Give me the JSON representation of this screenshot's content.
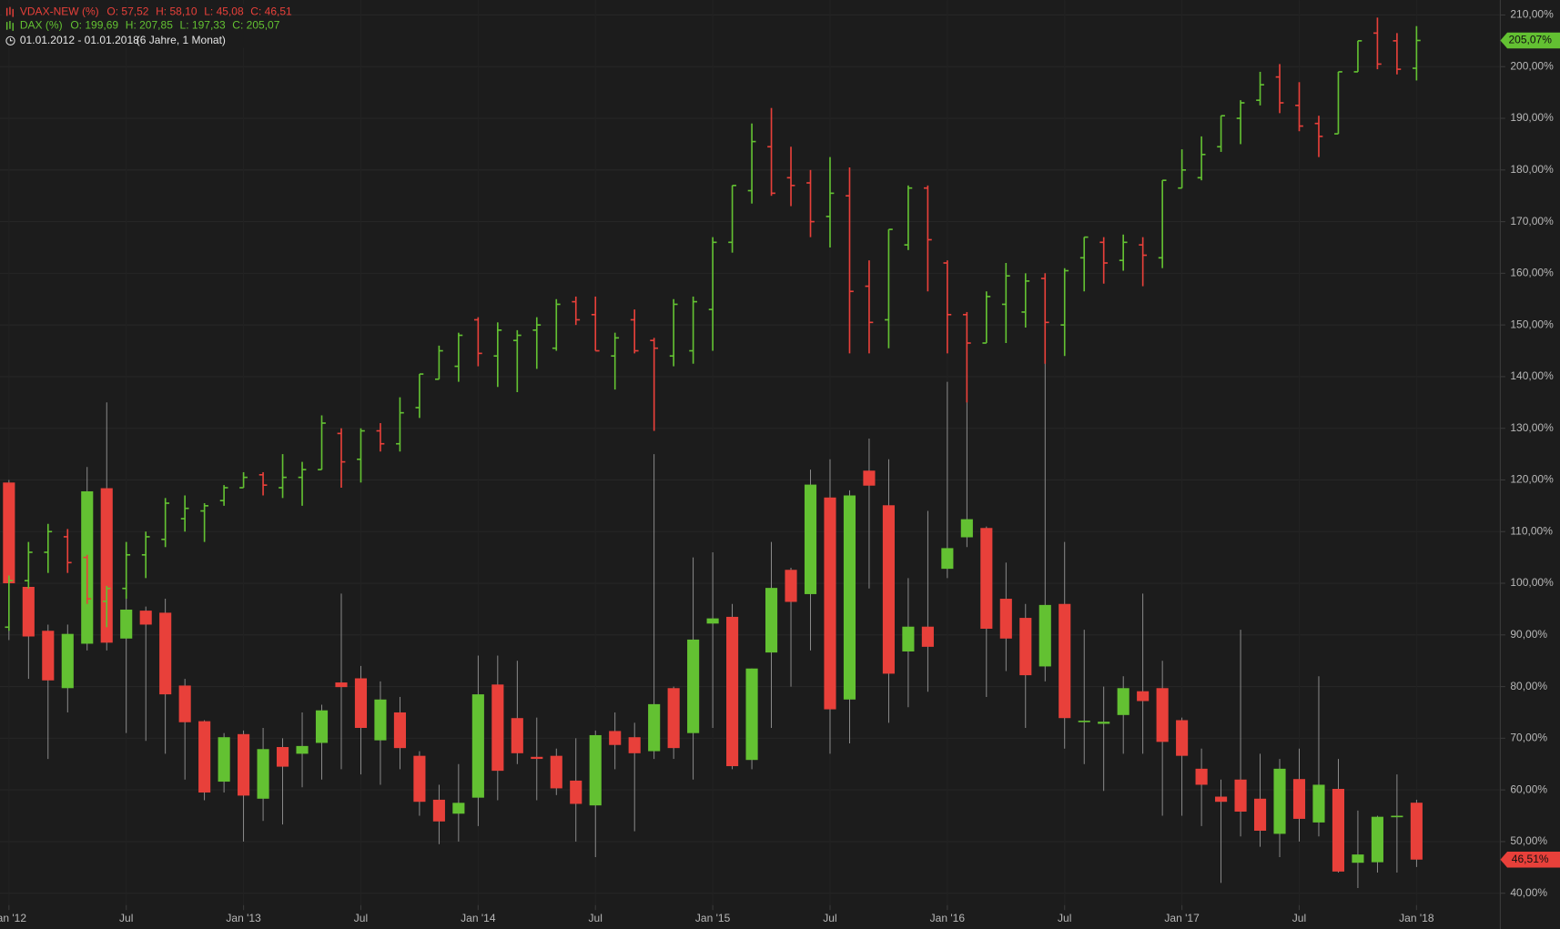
{
  "chart_data": {
    "type": "ohlc",
    "period": "01.01.2012 - 01.01.2018",
    "period_note": "(6 Jahre, 1 Monat)",
    "up_color": "#63c132",
    "down_color": "#e8403a",
    "grid": true,
    "categories": [
      "Jan '12",
      null,
      null,
      null,
      null,
      null,
      "Jul",
      null,
      null,
      null,
      null,
      null,
      "Jan '13",
      null,
      null,
      null,
      null,
      null,
      "Jul",
      null,
      null,
      null,
      null,
      null,
      "Jan '14",
      null,
      null,
      null,
      null,
      null,
      "Jul",
      null,
      null,
      null,
      null,
      null,
      "Jan '15",
      null,
      null,
      null,
      null,
      null,
      "Jul",
      null,
      null,
      null,
      null,
      null,
      "Jan '16",
      null,
      null,
      null,
      null,
      null,
      "Jul",
      null,
      null,
      null,
      null,
      null,
      "Jan '17",
      null,
      null,
      null,
      null,
      null,
      "Jul",
      null,
      null,
      null,
      null,
      null,
      "Jan '18"
    ],
    "ylim": [
      37.7,
      212.9
    ],
    "yticks": [
      {
        "value": 40,
        "label": "40,00%"
      },
      {
        "value": 50,
        "label": "50,00%"
      },
      {
        "value": 60,
        "label": "60,00%"
      },
      {
        "value": 70,
        "label": "70,00%"
      },
      {
        "value": 80,
        "label": "80,00%"
      },
      {
        "value": 90,
        "label": "90,00%"
      },
      {
        "value": 100,
        "label": "100,00%"
      },
      {
        "value": 110,
        "label": "110,00%"
      },
      {
        "value": 120,
        "label": "120,00%"
      },
      {
        "value": 130,
        "label": "130,00%"
      },
      {
        "value": 140,
        "label": "140,00%"
      },
      {
        "value": 150,
        "label": "150,00%"
      },
      {
        "value": 160,
        "label": "160,00%"
      },
      {
        "value": 170,
        "label": "170,00%"
      },
      {
        "value": 180,
        "label": "180,00%"
      },
      {
        "value": 190,
        "label": "190,00%"
      },
      {
        "value": 200,
        "label": "200,00%"
      },
      {
        "value": 210,
        "label": "210,00%"
      }
    ],
    "series": [
      {
        "name": "VDAX-NEW (%)",
        "style": "candlestick",
        "color": "#e8403a",
        "legend_items": [
          "O: 57,52",
          "H: 58,10",
          "L: 45,08",
          "C: 46,51"
        ],
        "last_label": "46,51%",
        "open": [
          119.5,
          99.3,
          90.8,
          79.7,
          88.3,
          118.4,
          89.3,
          94.7,
          94.3,
          80.2,
          73.3,
          61.6,
          70.8,
          58.3,
          68.3,
          67,
          69.1,
          80.8,
          81.6,
          69.6,
          75,
          66.6,
          58.1,
          55.4,
          58.5,
          80.4,
          73.9,
          66.4,
          66.6,
          61.8,
          57,
          71.4,
          70.2,
          67.5,
          79.7,
          71,
          92.2,
          93.5,
          65.8,
          86.6,
          102.6,
          97.9,
          116.6,
          77.5,
          121.8,
          115.1,
          86.8,
          91.6,
          102.8,
          108.9,
          110.7,
          97,
          93.3,
          83.9,
          96,
          73.2,
          72.8,
          74.5,
          79.1,
          79.7,
          73.5,
          64.1,
          58.7,
          62,
          58.3,
          51.5,
          62.1,
          53.7,
          60.2,
          45.9,
          46,
          54.8,
          57.52
        ],
        "high": [
          120,
          100,
          92,
          92,
          122.5,
          135,
          97,
          95.5,
          97,
          81.5,
          73.5,
          71,
          71.5,
          72,
          70,
          75,
          76.5,
          98,
          84,
          81,
          78,
          67.5,
          61,
          65,
          86,
          86,
          85,
          74,
          68,
          70,
          71.5,
          75,
          73,
          125,
          80,
          105,
          106,
          96,
          83.5,
          108,
          103,
          122,
          124,
          118,
          128,
          124,
          101,
          114,
          139,
          136,
          111,
          104,
          96,
          160,
          108,
          91,
          80,
          82,
          98,
          85,
          74,
          68,
          62,
          91,
          67,
          66,
          68,
          82,
          66,
          56,
          55,
          63,
          58.1
        ],
        "low": [
          89,
          81.5,
          66,
          75,
          87,
          87,
          71,
          69.5,
          67,
          62,
          58,
          59.5,
          50,
          54,
          53.3,
          60.5,
          62,
          64,
          63,
          61,
          64,
          55,
          49.5,
          50,
          53,
          58,
          65,
          58,
          59,
          50,
          47,
          64,
          52,
          66,
          66,
          62,
          72,
          64,
          64,
          72,
          80,
          87,
          67,
          69,
          99,
          73,
          76,
          79,
          101,
          107,
          78,
          83,
          72,
          81,
          68,
          65,
          59.8,
          67,
          67,
          55,
          55,
          53,
          42,
          51,
          49,
          47,
          50,
          51,
          44,
          41,
          44,
          44,
          45.08
        ],
        "close": [
          100,
          89.7,
          81.2,
          90.2,
          117.8,
          88.5,
          94.9,
          92,
          78.5,
          73.1,
          59.5,
          70.2,
          58.9,
          67.9,
          64.5,
          68.5,
          75.4,
          79.9,
          72,
          77.5,
          68.1,
          57.7,
          53.9,
          57.5,
          78.5,
          63.7,
          67.1,
          66,
          60.3,
          57.3,
          70.6,
          68.7,
          67.1,
          76.6,
          68.1,
          89.1,
          93.2,
          64.6,
          83.5,
          99.1,
          96.4,
          119.1,
          75.6,
          117,
          118.9,
          82.5,
          91.6,
          87.7,
          106.8,
          112.4,
          91.2,
          89.3,
          82.2,
          95.8,
          73.9,
          73.4,
          73.2,
          79.7,
          77.2,
          69.3,
          66.6,
          61,
          57.7,
          55.8,
          52.1,
          64.1,
          54.4,
          61,
          44.2,
          47.5,
          54.8,
          55,
          46.51
        ]
      },
      {
        "name": "DAX (%)",
        "style": "bar",
        "color": "#63c132",
        "legend_items": [
          "O: 199,69",
          "H: 207,85",
          "L: 197,33",
          "C: 205,07"
        ],
        "last_label": "205,07%",
        "open": [
          91.5,
          100.5,
          106,
          109,
          105,
          96.5,
          99,
          105.5,
          108.5,
          112.5,
          114,
          116,
          118.5,
          121,
          118.5,
          120.5,
          122,
          129,
          124,
          129.5,
          127,
          134,
          139.5,
          142,
          151,
          144,
          147,
          149,
          145.5,
          154.5,
          152,
          144,
          151,
          147,
          144,
          145,
          153,
          166,
          176,
          184.5,
          178.5,
          177.5,
          171,
          175,
          157.5,
          151,
          165.5,
          176.5,
          162,
          152,
          146.5,
          154,
          152.5,
          159,
          150,
          163,
          166,
          162.5,
          165.5,
          163,
          176.5,
          178.5,
          184.5,
          190,
          193.5,
          198,
          192.5,
          189,
          187,
          199,
          206.5,
          205,
          199.69
        ],
        "high": [
          101.5,
          108,
          111.5,
          110.5,
          105.5,
          99.5,
          108,
          110,
          116.5,
          117,
          115.5,
          119,
          121.5,
          121.5,
          125,
          123.5,
          132.5,
          130,
          130,
          131,
          136,
          140.5,
          146,
          148.5,
          151.5,
          150.5,
          149,
          151.5,
          155,
          155.5,
          155.5,
          148.5,
          153,
          147.5,
          155,
          155.5,
          167,
          177,
          189,
          192,
          184.5,
          180,
          182.5,
          180.5,
          162.5,
          168.5,
          177,
          177,
          162.5,
          152.5,
          156.5,
          162,
          160,
          160,
          161,
          167,
          167,
          167.5,
          167,
          178,
          184,
          186.5,
          190.5,
          193.5,
          199,
          200.5,
          197,
          190.5,
          199,
          205,
          209.5,
          206.5,
          207.85
        ],
        "low": [
          90.8,
          99,
          102,
          102,
          96,
          91.5,
          97,
          101,
          107,
          110,
          108,
          115,
          118.5,
          117,
          116.5,
          115,
          122,
          118.5,
          119.5,
          125.5,
          125.5,
          132,
          139.5,
          139,
          142,
          138,
          137,
          141.5,
          145,
          150,
          145,
          137.5,
          144.5,
          129.5,
          142,
          142.5,
          145,
          164,
          173.5,
          175,
          173,
          167,
          165,
          144.5,
          144.5,
          145.5,
          164.5,
          156.5,
          144.5,
          135,
          146.5,
          146.5,
          149.5,
          142.5,
          144,
          156.5,
          158,
          160.5,
          157.5,
          161,
          176.5,
          178,
          183.5,
          185,
          192.5,
          191,
          187.5,
          182.5,
          187,
          199,
          199.5,
          198.5,
          197.33
        ],
        "close": [
          100.5,
          106,
          110,
          104,
          97,
          99,
          105.5,
          109,
          115.5,
          114.5,
          115,
          118.5,
          120.5,
          119,
          120.5,
          122,
          131,
          123.5,
          129.5,
          127,
          133,
          140.5,
          145,
          148,
          144.5,
          149,
          148,
          150,
          154,
          151,
          145,
          147.5,
          145,
          145.5,
          154,
          154.5,
          166,
          177,
          185.5,
          175.5,
          177,
          170,
          175.5,
          156.5,
          150.5,
          168.5,
          176.5,
          166.5,
          152,
          146.5,
          155.5,
          159.5,
          158.5,
          150.5,
          160.5,
          167,
          162,
          166,
          163.5,
          178,
          180,
          183,
          190.5,
          193,
          196.5,
          193,
          188.5,
          186.5,
          199,
          205,
          200.5,
          199.5,
          205.07
        ]
      }
    ]
  }
}
